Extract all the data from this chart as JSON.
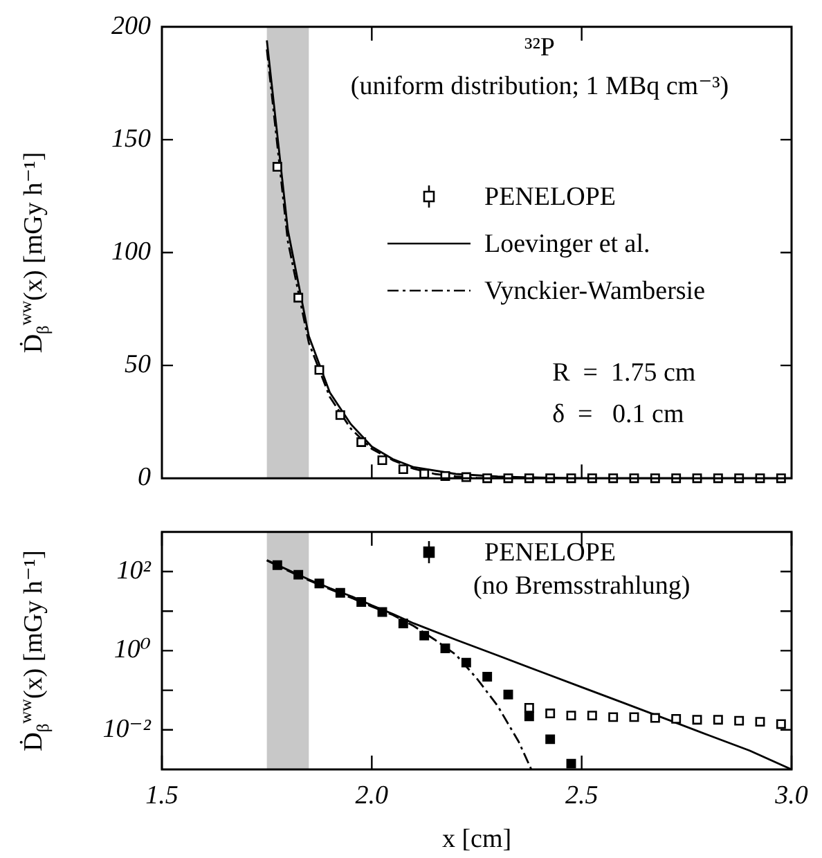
{
  "chart_data": [
    {
      "type": "scatter",
      "ylabel": "Ḋ$_{β}$$^{ww}$(x) [mGy h⁻¹]",
      "annotations": [
        "³²P",
        "(uniform distribution; 1 MBq cm⁻³)",
        "R  =  1.75 cm",
        "δ  =   0.1 cm"
      ],
      "xlim": [
        1.5,
        3.0
      ],
      "xticks": [
        {
          "value": 2,
          "label": null
        },
        {
          "value": 2.5,
          "label": null
        }
      ],
      "ylim": [
        0,
        200
      ],
      "yticks": [
        0,
        50,
        100,
        150,
        200
      ],
      "tick_labels": "y",
      "grid": false,
      "legend": "right",
      "bands": [
        {
          "axis": "x",
          "from": 1.75,
          "to": 1.85,
          "color": "#c8c8c8"
        }
      ],
      "series": [
        {
          "name": "PENELOPE",
          "color": "#ffffff",
          "marker": "square",
          "x": [
            1.775,
            1.825,
            1.875,
            1.925,
            1.975,
            2.025,
            2.075,
            2.125,
            2.175,
            2.225,
            2.275,
            2.325,
            2.375,
            2.425,
            2.475,
            2.525,
            2.575,
            2.625,
            2.675,
            2.725,
            2.775,
            2.825,
            2.875,
            2.925,
            2.975
          ],
          "values": [
            138,
            80,
            48,
            28,
            16,
            8,
            4,
            2,
            1,
            0.5,
            0,
            0,
            0,
            0,
            0,
            0,
            0,
            0,
            0,
            0,
            0,
            0,
            0,
            0,
            0
          ]
        },
        {
          "name": "Loevinger et al.",
          "type": "line",
          "color": "#000000",
          "line_style": "solid",
          "x": [
            1.75,
            1.8,
            1.85,
            1.9,
            1.95,
            2.0,
            2.05,
            2.1,
            2.2,
            2.3,
            2.4,
            2.5,
            2.6,
            2.7,
            2.8,
            2.9,
            3.0
          ],
          "values": [
            194,
            110,
            63,
            38,
            24,
            14,
            8.5,
            4.9,
            1.9,
            0.8,
            0.3,
            0,
            0,
            0,
            0,
            0,
            0
          ]
        },
        {
          "name": "Vynckier-Wambersie",
          "type": "line",
          "color": "#000000",
          "line_style": "dashdot",
          "x": [
            1.75,
            1.8,
            1.85,
            1.9,
            1.95,
            2.0,
            2.05,
            2.1,
            2.15,
            2.2,
            2.25,
            2.3,
            2.35,
            2.38
          ],
          "values": [
            190,
            105,
            60,
            36,
            22,
            13,
            8,
            4.2,
            1.9,
            0.8,
            0.2,
            0,
            0,
            0
          ]
        }
      ]
    },
    {
      "type": "scatter",
      "ylabel": "Ḋ$_{β}$$^{ww}$(x) [mGy h⁻¹]",
      "xlabel": "x [cm]",
      "xlim": [
        1.5,
        3.0
      ],
      "xticks": [
        1.5,
        {
          "value": 2,
          "label": "2.0"
        },
        2.5,
        {
          "value": 3,
          "label": "3.0"
        }
      ],
      "ylim": [
        0.001,
        1000
      ],
      "log": "y",
      "yticks": [
        {
          "value": 0.001,
          "label": null
        },
        {
          "value": 0.01,
          "label": "10⁻²"
        },
        {
          "value": 0.1,
          "label": null
        },
        {
          "value": 1,
          "label": "10⁰"
        },
        {
          "value": 10,
          "label": null
        },
        {
          "value": 100,
          "label": "10²"
        },
        {
          "value": 1000,
          "label": null
        }
      ],
      "grid": false,
      "legend": "top right",
      "bands": [
        {
          "axis": "x",
          "from": 1.75,
          "to": 1.85,
          "color": "#c8c8c8"
        }
      ],
      "series": [
        {
          "color": "#ffffff",
          "marker": "square",
          "x": [
            2.375,
            2.425,
            2.475,
            2.525,
            2.575,
            2.625,
            2.675,
            2.725,
            2.775,
            2.825,
            2.875,
            2.925,
            2.975
          ],
          "values": [
            0.036,
            0.026,
            0.023,
            0.023,
            0.021,
            0.021,
            0.02,
            0.019,
            0.018,
            0.018,
            0.017,
            0.016,
            0.014
          ]
        },
        {
          "name": "PENELOPE (no Bremsstrahlung)",
          "color": "#000000",
          "marker": "square",
          "x": [
            1.775,
            1.825,
            1.875,
            1.925,
            1.975,
            2.025,
            2.075,
            2.125,
            2.175,
            2.225,
            2.275,
            2.325,
            2.375,
            2.425,
            2.475
          ],
          "values": [
            145,
            83,
            50,
            29,
            17,
            9.5,
            4.9,
            2.4,
            1.15,
            0.5,
            0.22,
            0.078,
            0.022,
            0.0058,
            0.0014
          ]
        },
        {
          "type": "line",
          "color": "#000000",
          "line_style": "solid",
          "x": [
            1.75,
            1.8,
            1.85,
            1.9,
            1.95,
            2.0,
            2.05,
            2.1,
            2.2,
            2.3,
            2.4,
            2.5,
            2.6,
            2.7,
            2.8,
            2.9,
            3.0
          ],
          "values": [
            194,
            110,
            63,
            38,
            24,
            14,
            8.5,
            4.9,
            1.9,
            0.76,
            0.3,
            0.12,
            0.048,
            0.019,
            0.0075,
            0.003,
            0.001
          ]
        },
        {
          "type": "line",
          "color": "#000000",
          "line_style": "dashdot",
          "x": [
            1.75,
            1.8,
            1.85,
            1.9,
            1.95,
            2.0,
            2.05,
            2.1,
            2.15,
            2.2,
            2.25,
            2.3,
            2.35,
            2.38
          ],
          "values": [
            190,
            105,
            60,
            36,
            22,
            13,
            8,
            4.2,
            1.9,
            0.8,
            0.2,
            0.04,
            0.005,
            0.001
          ]
        }
      ]
    }
  ]
}
